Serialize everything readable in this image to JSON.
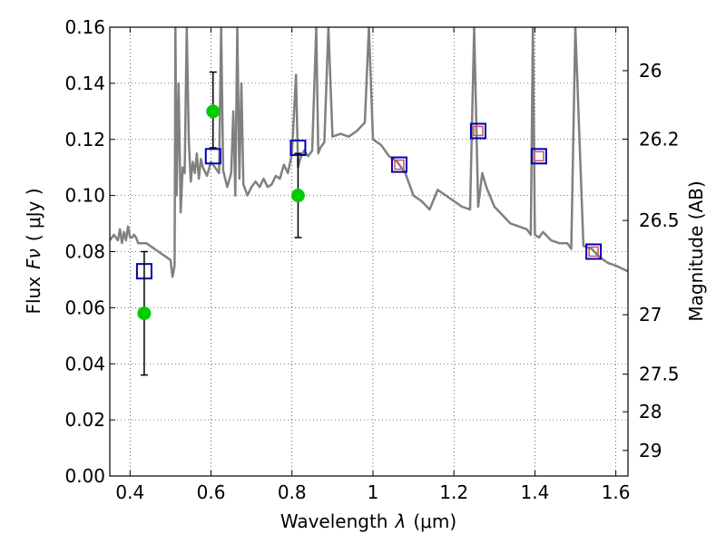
{
  "chart_data": {
    "type": "line",
    "x_axis": {
      "label_prefix": "Wavelength",
      "label_symbol": "λ",
      "label_unit": "(μm)",
      "range": [
        0.35,
        1.63
      ],
      "ticks": [
        0.4,
        0.6,
        0.8,
        1.0,
        1.2,
        1.4,
        1.6
      ],
      "tick_labels": [
        "0.4",
        "0.6",
        "0.8",
        "1",
        "1.2",
        "1.4",
        "1.6"
      ]
    },
    "y_axis": {
      "label_prefix": "Flux",
      "label_symbol": "Fν",
      "label_unit": "( μJy )",
      "range": [
        0.0,
        0.16
      ],
      "ticks": [
        0.0,
        0.02,
        0.04,
        0.06,
        0.08,
        0.1,
        0.12,
        0.14,
        0.16
      ],
      "tick_labels": [
        "0.00",
        "0.02",
        "0.04",
        "0.06",
        "0.08",
        "0.10",
        "0.12",
        "0.14",
        "0.16"
      ]
    },
    "y2_axis": {
      "label": "Magnitude (AB)",
      "ticks": [
        {
          "label": "26",
          "flux": 0.1445
        },
        {
          "label": "26.2",
          "flux": 0.1201
        },
        {
          "label": "26.5",
          "flux": 0.0911
        },
        {
          "label": "27",
          "flux": 0.0575
        },
        {
          "label": "27.5",
          "flux": 0.0363
        },
        {
          "label": "28",
          "flux": 0.0229
        },
        {
          "label": "29",
          "flux": 0.0091
        }
      ]
    },
    "grid": true,
    "series": [
      {
        "kind": "spectrum",
        "color": "#808080",
        "x": [
          0.35,
          0.36,
          0.37,
          0.375,
          0.38,
          0.385,
          0.39,
          0.395,
          0.4,
          0.405,
          0.41,
          0.415,
          0.42,
          0.43,
          0.44,
          0.45,
          0.46,
          0.47,
          0.48,
          0.49,
          0.5,
          0.505,
          0.51,
          0.512,
          0.515,
          0.52,
          0.525,
          0.53,
          0.535,
          0.54,
          0.545,
          0.55,
          0.555,
          0.56,
          0.565,
          0.57,
          0.575,
          0.58,
          0.59,
          0.6,
          0.61,
          0.62,
          0.625,
          0.63,
          0.64,
          0.65,
          0.655,
          0.66,
          0.665,
          0.67,
          0.675,
          0.68,
          0.69,
          0.7,
          0.71,
          0.72,
          0.73,
          0.74,
          0.75,
          0.76,
          0.77,
          0.78,
          0.79,
          0.8,
          0.81,
          0.815,
          0.82,
          0.83,
          0.84,
          0.85,
          0.86,
          0.865,
          0.87,
          0.88,
          0.89,
          0.9,
          0.92,
          0.94,
          0.96,
          0.98,
          0.99,
          1.0,
          1.02,
          1.04,
          1.06,
          1.08,
          1.1,
          1.12,
          1.14,
          1.16,
          1.18,
          1.2,
          1.22,
          1.24,
          1.25,
          1.26,
          1.27,
          1.28,
          1.3,
          1.32,
          1.34,
          1.36,
          1.38,
          1.39,
          1.395,
          1.4,
          1.41,
          1.42,
          1.44,
          1.46,
          1.48,
          1.49,
          1.5,
          1.52,
          1.54,
          1.56,
          1.58,
          1.6,
          1.63
        ],
        "y": [
          0.084,
          0.086,
          0.084,
          0.088,
          0.083,
          0.087,
          0.084,
          0.089,
          0.085,
          0.085,
          0.086,
          0.085,
          0.083,
          0.083,
          0.083,
          0.082,
          0.081,
          0.08,
          0.079,
          0.078,
          0.077,
          0.071,
          0.075,
          0.16,
          0.1,
          0.14,
          0.094,
          0.11,
          0.108,
          0.16,
          0.12,
          0.105,
          0.112,
          0.108,
          0.115,
          0.106,
          0.113,
          0.11,
          0.107,
          0.112,
          0.11,
          0.108,
          0.16,
          0.109,
          0.103,
          0.108,
          0.13,
          0.1,
          0.16,
          0.106,
          0.14,
          0.104,
          0.1,
          0.103,
          0.105,
          0.103,
          0.106,
          0.103,
          0.104,
          0.107,
          0.106,
          0.111,
          0.108,
          0.115,
          0.143,
          0.11,
          0.113,
          0.116,
          0.114,
          0.116,
          0.16,
          0.115,
          0.117,
          0.119,
          0.16,
          0.121,
          0.122,
          0.121,
          0.123,
          0.126,
          0.16,
          0.12,
          0.118,
          0.114,
          0.112,
          0.108,
          0.1,
          0.098,
          0.095,
          0.102,
          0.1,
          0.098,
          0.096,
          0.095,
          0.16,
          0.096,
          0.108,
          0.103,
          0.096,
          0.093,
          0.09,
          0.089,
          0.088,
          0.086,
          0.16,
          0.086,
          0.085,
          0.087,
          0.084,
          0.083,
          0.083,
          0.081,
          0.16,
          0.082,
          0.081,
          0.078,
          0.076,
          0.075,
          0.073
        ]
      },
      {
        "kind": "model-photometry",
        "marker": "open-square",
        "color": "#0000bb",
        "x": [
          0.435,
          0.605,
          0.815,
          1.065,
          1.26,
          1.41,
          1.545
        ],
        "y": [
          0.073,
          0.114,
          0.117,
          0.111,
          0.123,
          0.114,
          0.08
        ]
      },
      {
        "kind": "observed-photometry",
        "marker": "filled-circle",
        "color": "#00cc00",
        "x": [
          0.435,
          0.605,
          0.815
        ],
        "y": [
          0.058,
          0.13,
          0.1
        ],
        "yerr_low": [
          0.036,
          0.117,
          0.085
        ],
        "yerr_high": [
          0.08,
          0.144,
          0.115
        ]
      },
      {
        "kind": "fit-photometry",
        "marker": "small-square",
        "color": "#cc5555",
        "x": [
          1.065,
          1.26,
          1.41,
          1.545
        ],
        "y": [
          0.111,
          0.123,
          0.114,
          0.08
        ]
      }
    ]
  }
}
